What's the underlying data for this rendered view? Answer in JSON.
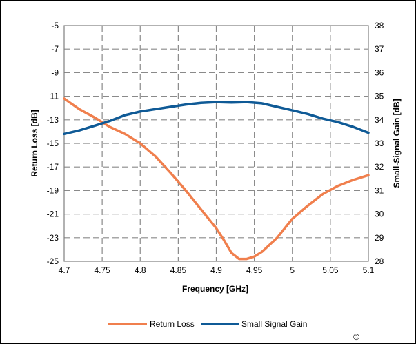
{
  "chart_data": {
    "type": "line",
    "xlabel": "Frequency [GHz]",
    "ylabel_left": "Return Loss [dB]",
    "ylabel_right": "Small-Signal Gain [dB]",
    "xlim": [
      4.7,
      5.1
    ],
    "ylim_left": [
      -25,
      -5
    ],
    "ylim_right": [
      28,
      38
    ],
    "x_ticks": [
      "4.7",
      "4.75",
      "4.8",
      "4.85",
      "4.9",
      "4.95",
      "5",
      "5.05",
      "5.1"
    ],
    "y_left_ticks": [
      "-5",
      "-7",
      "-9",
      "-11",
      "-13",
      "-15",
      "-17",
      "-19",
      "-21",
      "-23",
      "-25"
    ],
    "y_right_ticks": [
      "38",
      "37",
      "36",
      "35",
      "34",
      "33",
      "32",
      "31",
      "30",
      "29",
      "28"
    ],
    "grid": true,
    "legend_position": "bottom",
    "copyright_mark": "©",
    "series": [
      {
        "name": "Return Loss",
        "axis": "left",
        "color": "#f07f4d",
        "x": [
          4.7,
          4.72,
          4.74,
          4.76,
          4.78,
          4.8,
          4.82,
          4.84,
          4.86,
          4.88,
          4.9,
          4.91,
          4.92,
          4.93,
          4.94,
          4.95,
          4.96,
          4.97,
          4.98,
          5.0,
          5.02,
          5.04,
          5.06,
          5.08,
          5.1
        ],
        "values": [
          -11.2,
          -12.1,
          -12.8,
          -13.6,
          -14.2,
          -15.0,
          -16.1,
          -17.5,
          -19.0,
          -20.6,
          -22.2,
          -23.2,
          -24.3,
          -24.8,
          -24.8,
          -24.6,
          -24.2,
          -23.6,
          -23.0,
          -21.4,
          -20.3,
          -19.3,
          -18.6,
          -18.1,
          -17.7
        ]
      },
      {
        "name": "Small Signal Gain",
        "axis": "right",
        "color": "#0f5a96",
        "x": [
          4.7,
          4.72,
          4.74,
          4.76,
          4.78,
          4.8,
          4.82,
          4.84,
          4.86,
          4.88,
          4.9,
          4.92,
          4.94,
          4.96,
          4.98,
          5.0,
          5.02,
          5.04,
          5.06,
          5.08,
          5.1
        ],
        "values": [
          33.4,
          33.55,
          33.75,
          33.95,
          34.2,
          34.35,
          34.45,
          34.55,
          34.65,
          34.72,
          34.75,
          34.73,
          34.75,
          34.7,
          34.55,
          34.4,
          34.25,
          34.05,
          33.9,
          33.7,
          33.45
        ]
      }
    ]
  }
}
